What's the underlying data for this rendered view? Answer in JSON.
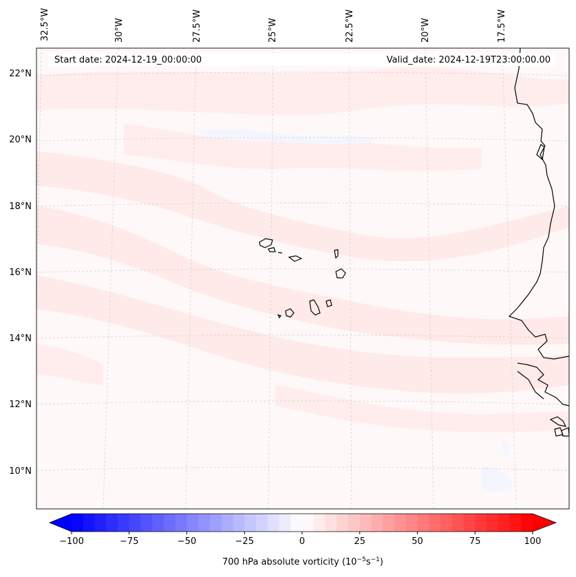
{
  "header": {
    "start_date": "Start date: 2024-12-19_00:00:00",
    "valid_date": "Valid_date: 2024-12-19T23:00:00.00"
  },
  "map": {
    "lon_labels": [
      "32.5°W",
      "30°W",
      "27.5°W",
      "25°W",
      "22.5°W",
      "20°W",
      "17.5°W"
    ],
    "lat_labels": [
      "22°N",
      "20°N",
      "18°N",
      "16°N",
      "14°N",
      "12°N",
      "10°N"
    ]
  },
  "colorbar": {
    "ticks": [
      "−100",
      "−75",
      "−50",
      "−25",
      "0",
      "25",
      "50",
      "75",
      "100"
    ],
    "tick_values": [
      -100,
      -75,
      -50,
      -25,
      0,
      25,
      50,
      75,
      100
    ],
    "min": -100,
    "max": 100,
    "label": "700 hPa absolute vorticity (10",
    "label_exp1": "−5",
    "label_mid": "s",
    "label_exp2": "−1",
    "label_end": ")",
    "colors": {
      "low": "#0000ff",
      "mid": "#ffffff",
      "high": "#ff0000"
    }
  }
}
